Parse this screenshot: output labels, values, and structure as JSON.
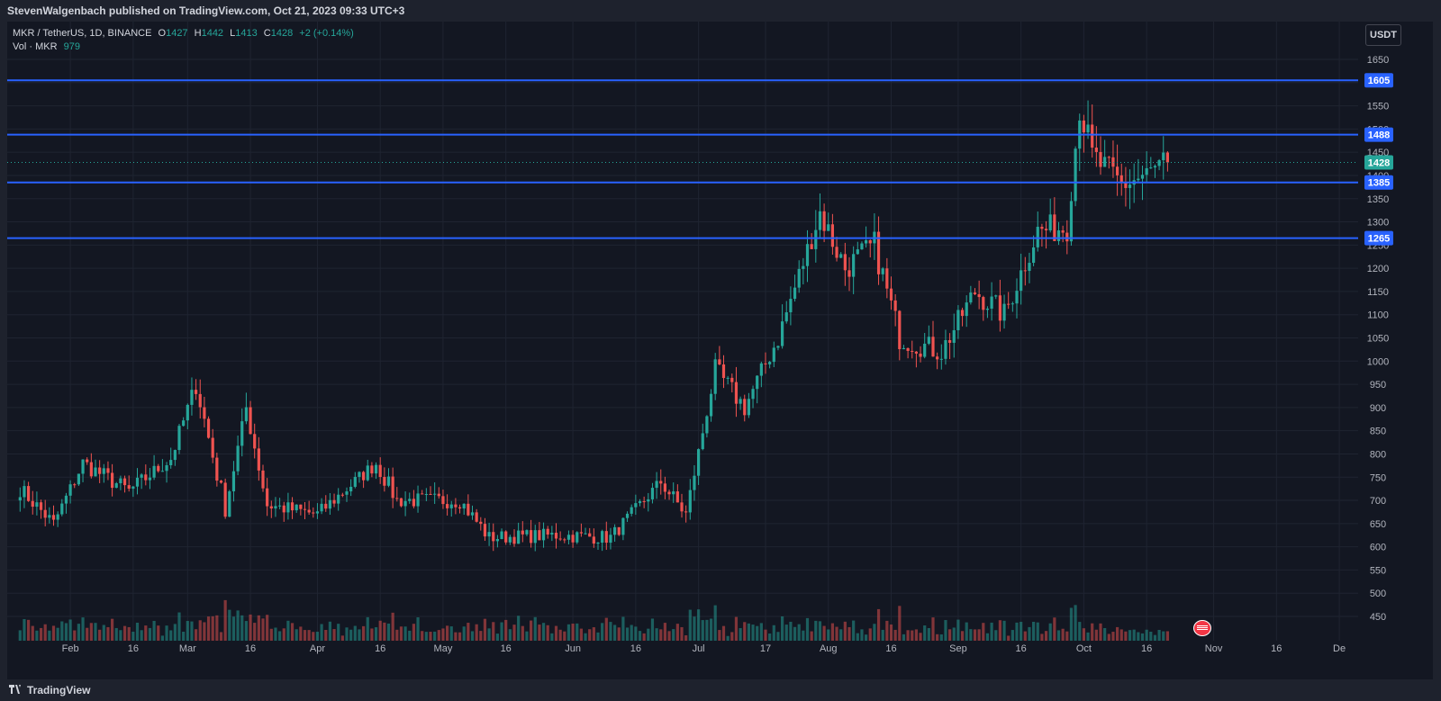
{
  "header": {
    "publish_info": "StevenWalgenbach published on TradingView.com, Oct 21, 2023 09:33 UTC+3"
  },
  "legend": {
    "symbol": "MKR / TetherUS, 1D, BINANCE",
    "o_label": "O",
    "o_value": "1427",
    "h_label": "H",
    "h_value": "1442",
    "l_label": "L",
    "l_value": "1413",
    "c_label": "C",
    "c_value": "1428",
    "change": "+2 (+0.14%)",
    "vol_label": "Vol · MKR",
    "vol_value": "979"
  },
  "currency_button": "USDT",
  "footer": {
    "brand": "TradingView"
  },
  "colors": {
    "up": "#26a69a",
    "down": "#ef5350",
    "level_line": "#2962ff",
    "grid": "#1f2431",
    "bg": "#131722"
  },
  "chart_data": {
    "type": "candlestick",
    "symbol": "MKR / TetherUS",
    "interval": "1D",
    "exchange": "BINANCE",
    "ylim": [
      430,
      1700
    ],
    "y_ticks": [
      450,
      500,
      550,
      600,
      650,
      700,
      750,
      800,
      850,
      900,
      950,
      1000,
      1050,
      1100,
      1150,
      1200,
      1250,
      1300,
      1350,
      1400,
      1450,
      1500,
      1550,
      1600,
      1650
    ],
    "x_ticks": [
      "Feb",
      "16",
      "Mar",
      "16",
      "Apr",
      "16",
      "May",
      "16",
      "Jun",
      "16",
      "Jul",
      "17",
      "Aug",
      "16",
      "Sep",
      "16",
      "Oct",
      "16",
      "Nov",
      "16",
      "De"
    ],
    "horizontal_levels": [
      1605,
      1488,
      1385,
      1265
    ],
    "last_price": 1428,
    "key_points": [
      {
        "date": "2023-01-20",
        "close": 725
      },
      {
        "date": "2023-01-28",
        "close": 650
      },
      {
        "date": "2023-02-04",
        "close": 780
      },
      {
        "date": "2023-02-15",
        "close": 720
      },
      {
        "date": "2023-02-25",
        "close": 790
      },
      {
        "date": "2023-03-03",
        "close": 950
      },
      {
        "date": "2023-03-10",
        "close": 680
      },
      {
        "date": "2023-03-15",
        "close": 900
      },
      {
        "date": "2023-03-20",
        "close": 690
      },
      {
        "date": "2023-04-01",
        "close": 670
      },
      {
        "date": "2023-04-15",
        "close": 780
      },
      {
        "date": "2023-04-20",
        "close": 700
      },
      {
        "date": "2023-05-05",
        "close": 700
      },
      {
        "date": "2023-05-12",
        "close": 620
      },
      {
        "date": "2023-05-28",
        "close": 625
      },
      {
        "date": "2023-06-10",
        "close": 620
      },
      {
        "date": "2023-06-22",
        "close": 740
      },
      {
        "date": "2023-06-28",
        "close": 670
      },
      {
        "date": "2023-07-05",
        "close": 980
      },
      {
        "date": "2023-07-12",
        "close": 900
      },
      {
        "date": "2023-07-20",
        "close": 1050
      },
      {
        "date": "2023-07-30",
        "close": 1320
      },
      {
        "date": "2023-08-05",
        "close": 1200
      },
      {
        "date": "2023-08-12",
        "close": 1250
      },
      {
        "date": "2023-08-18",
        "close": 1050
      },
      {
        "date": "2023-08-28",
        "close": 1020
      },
      {
        "date": "2023-09-05",
        "close": 1150
      },
      {
        "date": "2023-09-12",
        "close": 1100
      },
      {
        "date": "2023-09-20",
        "close": 1280
      },
      {
        "date": "2023-09-27",
        "close": 1290
      },
      {
        "date": "2023-09-30",
        "close": 1550
      },
      {
        "date": "2023-10-03",
        "close": 1440
      },
      {
        "date": "2023-10-10",
        "close": 1380
      },
      {
        "date": "2023-10-16",
        "close": 1400
      },
      {
        "date": "2023-10-21",
        "close": 1428
      }
    ]
  }
}
